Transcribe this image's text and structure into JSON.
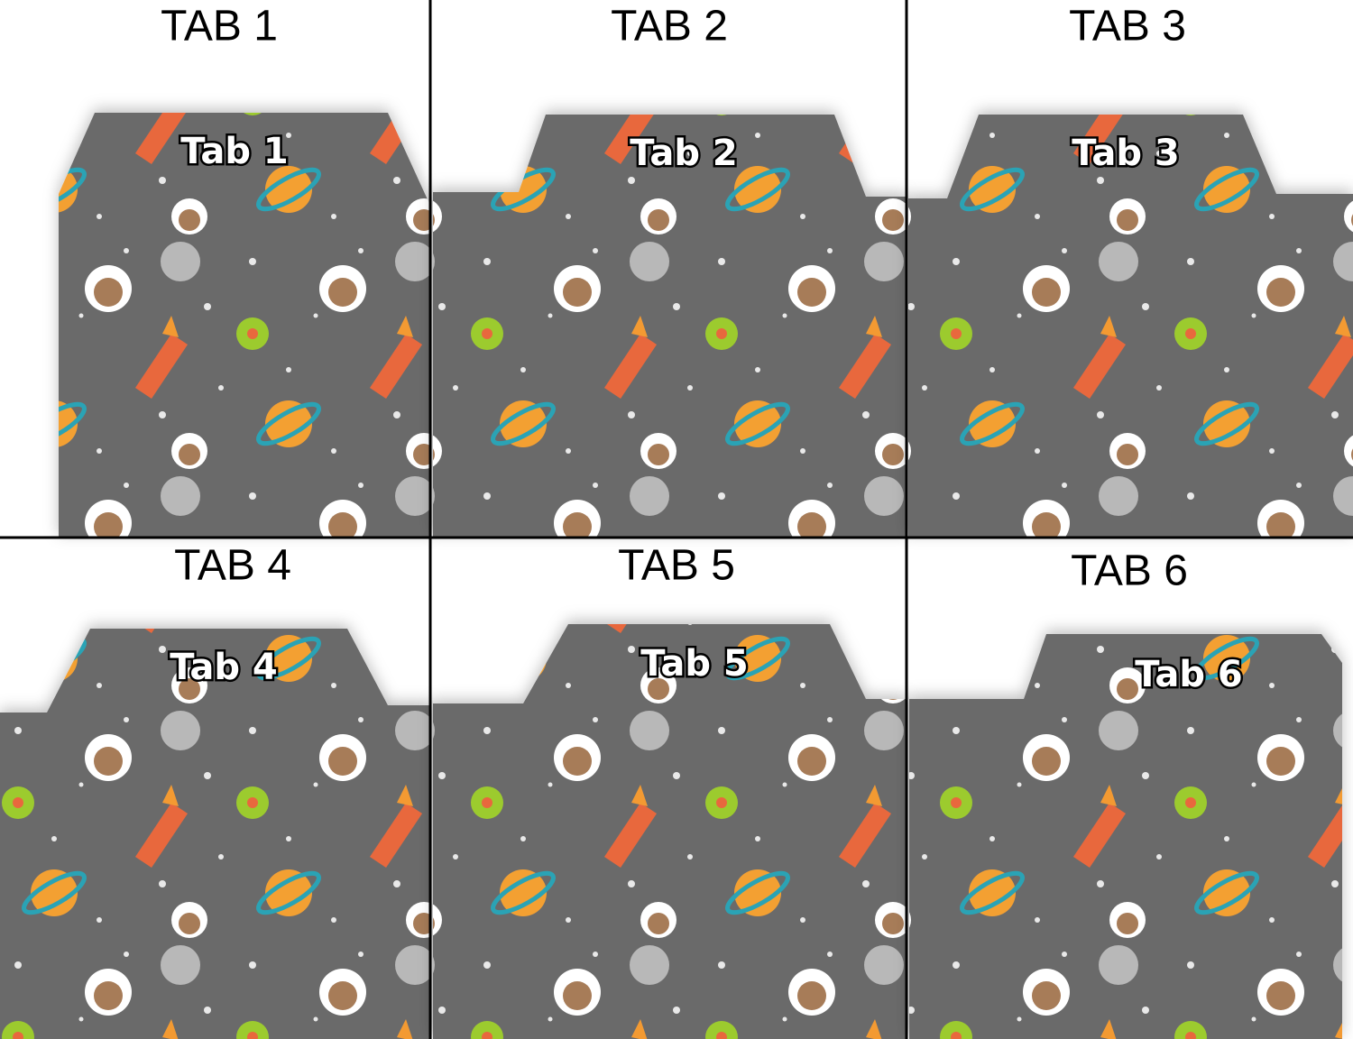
{
  "panels": [
    {
      "heading": "TAB 1",
      "tab_label": "Tab 1"
    },
    {
      "heading": "TAB 2",
      "tab_label": "Tab 2"
    },
    {
      "heading": "TAB 3",
      "tab_label": "Tab 3"
    },
    {
      "heading": "TAB 4",
      "tab_label": "Tab 4"
    },
    {
      "heading": "TAB 5",
      "tab_label": "Tab 5"
    },
    {
      "heading": "TAB 6",
      "tab_label": "Tab 6"
    }
  ]
}
